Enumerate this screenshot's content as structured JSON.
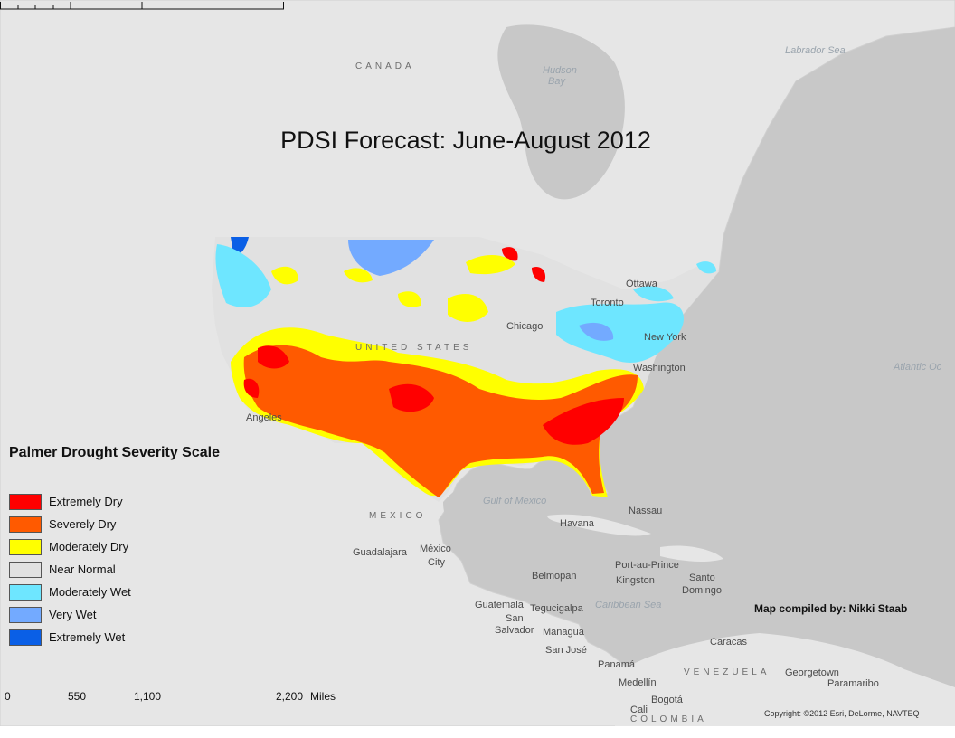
{
  "title": "PDSI Forecast: June-August 2012",
  "legend": {
    "title": "Palmer Drought Severity Scale",
    "items": [
      {
        "label": "Extremely Dry",
        "color": "#ff0000"
      },
      {
        "label": "Severely Dry",
        "color": "#ff5a00"
      },
      {
        "label": "Moderately Dry",
        "color": "#ffff00"
      },
      {
        "label": "Near Normal",
        "color": "#e1e1e1"
      },
      {
        "label": "Moderately Wet",
        "color": "#6ee6ff"
      },
      {
        "label": "Very Wet",
        "color": "#73aaff"
      },
      {
        "label": "Extremely Wet",
        "color": "#0a5fe6"
      }
    ]
  },
  "credit": "Map compiled by: Nikki Staab",
  "copyright": "Copyright: ©2012 Esri, DeLorme, NAVTEQ",
  "scale": {
    "t0": "0",
    "t1": "550",
    "t2": "1,100",
    "t3": "2,200",
    "unit": "Miles"
  },
  "places": {
    "canada": "CANADA",
    "hudson_bay_1": "Hudson",
    "hudson_bay_2": "Bay",
    "labrador_sea": "Labrador Sea",
    "atlantic": "Atlantic Oc",
    "ottawa": "Ottawa",
    "toronto": "Toronto",
    "chicago": "Chicago",
    "new_york": "New York",
    "washington": "Washington",
    "united_states": "UNITED STATES",
    "los_angeles": "Angeles",
    "gulf_of_mexico": "Gulf of Mexico",
    "mexico": "MEXICO",
    "nassau": "Nassau",
    "havana": "Havana",
    "guadalajara": "Guadalajara",
    "mexico_city_1": "México",
    "mexico_city_2": "City",
    "belmopan": "Belmopan",
    "port_au_prince": "Port-au-Prince",
    "kingston": "Kingston",
    "santo_domingo_1": "Santo",
    "santo_domingo_2": "Domingo",
    "guatemala": "Guatemala",
    "tegucigalpa": "Tegucigalpa",
    "san_salvador_1": "San",
    "san_salvador_2": "Salvador",
    "managua": "Managua",
    "caribbean": "Caribbean Sea",
    "san_jose": "San José",
    "panama": "Panamá",
    "caracas": "Caracas",
    "venezuela": "VENEZUELA",
    "georgetown": "Georgetown",
    "paramaribo": "Paramaribo",
    "medellin": "Medellín",
    "bogota": "Bogotá",
    "cali": "Cali",
    "colombia": "COLOMBIA"
  }
}
